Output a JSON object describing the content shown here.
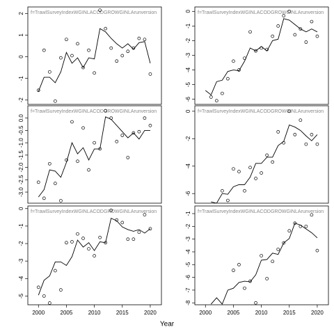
{
  "xlabel": "Year",
  "chart_data": [
    {
      "type": "scatter",
      "title": "f=TrawlSurveyIndexWGINLACODGROWGINLArunversion",
      "x": [
        2000,
        2001,
        2002,
        2003,
        2004,
        2005,
        2006,
        2007,
        2008,
        2009,
        2010,
        2011,
        2012,
        2013,
        2014,
        2015,
        2016,
        2017,
        2018,
        2019,
        2020
      ],
      "series": [
        {
          "style": "points",
          "color": "#000000",
          "values": [
            -1.55,
            0.3,
            -0.7,
            -2.05,
            -0.05,
            0.8,
            0.05,
            0.6,
            -0.5,
            0.3,
            -0.75,
            2.15,
            1.3,
            0.4,
            -0.2,
            0.05,
            0.25,
            0.4,
            0.85,
            0.8,
            -0.8
          ]
        },
        {
          "style": "line",
          "color": "#000000",
          "values": [
            -1.6,
            -0.95,
            -0.95,
            -1.2,
            -0.7,
            0.2,
            -0.3,
            -0.05,
            -0.5,
            -0.05,
            -0.1,
            1.3,
            1.15,
            0.85,
            0.6,
            0.4,
            0.6,
            0.35,
            0.65,
            0.7,
            -0.3
          ]
        }
      ],
      "xlim": [
        1998.1,
        2022
      ],
      "ylim": [
        -2.2,
        2.3
      ],
      "yticks": [
        -2,
        -1,
        0,
        1,
        2
      ]
    },
    {
      "type": "scatter",
      "title": "f=TrawlSurveyIndexWGINLACODGROWGINLArunversion",
      "x": [
        2000,
        2001,
        2002,
        2003,
        2004,
        2005,
        2006,
        2007,
        2008,
        2009,
        2010,
        2011,
        2012,
        2013,
        2014,
        2015,
        2016,
        2017,
        2018,
        2019,
        2020
      ],
      "series": [
        {
          "style": "points",
          "color": "#000000",
          "values": [
            null,
            -5.85,
            -6.1,
            -5.6,
            -4.6,
            -3.4,
            -4.0,
            -3.2,
            -1.4,
            -2.7,
            -2.5,
            -2.6,
            -1.7,
            -1.0,
            -0.3,
            0.0,
            -1.6,
            -1.2,
            -2.1,
            -0.7,
            -1.7
          ]
        },
        {
          "style": "line",
          "color": "#000000",
          "values": [
            -5.4,
            -5.7,
            -4.8,
            -4.7,
            -4.1,
            -4.0,
            -4.05,
            -3.4,
            -2.5,
            -2.7,
            -2.4,
            -2.7,
            -2.0,
            -1.9,
            -0.5,
            -0.6,
            -0.9,
            -1.2,
            -1.4,
            -1.2,
            -1.4
          ]
        }
      ],
      "xlim": [
        1998.1,
        2022
      ],
      "ylim": [
        -6.35,
        0.3
      ],
      "yticks": [
        0,
        -1,
        -2,
        -3,
        -4,
        -5,
        -6
      ]
    },
    {
      "type": "scatter",
      "title": "f=TrawlSurveyIndexWGINLACODGROWGINLArunversion",
      "x": [
        2000,
        2001,
        2002,
        2003,
        2004,
        2005,
        2006,
        2007,
        2008,
        2009,
        2010,
        2011,
        2012,
        2013,
        2014,
        2015,
        2016,
        2017,
        2018,
        2019,
        2020
      ],
      "series": [
        {
          "style": "points",
          "color": "#000000",
          "values": [
            -2.6,
            -3.25,
            -1.85,
            -2.65,
            -3.35,
            -1.7,
            -0.15,
            -1.75,
            -0.4,
            -2.1,
            -1.0,
            -1.25,
            0.3,
            0.0,
            -0.95,
            -0.7,
            -1.6,
            -0.6,
            -0.55,
            0.0,
            -0.3
          ]
        },
        {
          "style": "line",
          "color": "#000000",
          "values": [
            -3.2,
            -2.9,
            -2.1,
            -2.15,
            -2.4,
            -1.8,
            -1.0,
            -1.45,
            -1.2,
            -1.7,
            -1.25,
            -1.25,
            0.05,
            -0.05,
            -0.3,
            -0.55,
            -0.8,
            -0.6,
            -0.85,
            -0.5,
            -0.5
          ]
        }
      ],
      "xlim": [
        1998.1,
        2022
      ],
      "ylim": [
        -3.45,
        0.5
      ],
      "yticks": [
        {
          "value": 0,
          "label": "0.0"
        },
        -0.5,
        {
          "value": -1,
          "label": "-1.0"
        },
        -1.5,
        {
          "value": -2,
          "label": "-2.0"
        },
        -2.5,
        {
          "value": -3,
          "label": "-3.0"
        }
      ]
    },
    {
      "type": "scatter",
      "title": "f=TrawlSurveyIndexWGINLACODGROWGINLArunversion",
      "x": [
        2000,
        2001,
        2002,
        2003,
        2004,
        2005,
        2006,
        2007,
        2008,
        2009,
        2010,
        2011,
        2012,
        2013,
        2014,
        2015,
        2016,
        2017,
        2018,
        2019,
        2020
      ],
      "series": [
        {
          "style": "points",
          "color": "#000000",
          "values": [
            null,
            null,
            null,
            -5.8,
            -6.5,
            -4.2,
            -4.4,
            -5.8,
            -4.1,
            -4.9,
            -4.5,
            -3.2,
            -3.7,
            -1.5,
            -2.3,
            0.0,
            -1.7,
            -0.65,
            -2.4,
            -1.7,
            -2.4
          ]
        },
        {
          "style": "line",
          "color": "#000000",
          "values": [
            null,
            -6.6,
            -6.7,
            -6.0,
            -6.05,
            -5.5,
            -5.35,
            -5.35,
            -4.8,
            -3.8,
            -3.8,
            -3.35,
            -3.35,
            -2.5,
            -2.2,
            -1.0,
            -1.15,
            -1.4,
            -1.8,
            -2.15,
            -1.7
          ]
        }
      ],
      "xlim": [
        1998.1,
        2022
      ],
      "ylim": [
        -6.7,
        0.4
      ],
      "yticks": [
        0,
        -2,
        -4,
        -6
      ]
    },
    {
      "type": "scatter",
      "title": "f=TrawlSurveyIndexWGINLACODGROWGINLArunversion",
      "x": [
        2000,
        2001,
        2002,
        2003,
        2004,
        2005,
        2006,
        2007,
        2008,
        2009,
        2010,
        2011,
        2012,
        2013,
        2014,
        2015,
        2016,
        2017,
        2018,
        2019,
        2020
      ],
      "series": [
        {
          "style": "points",
          "color": "#000000",
          "values": [
            -4.5,
            -5.0,
            -5.4,
            -3.55,
            -4.65,
            -1.95,
            -1.9,
            -1.45,
            -1.7,
            -2.3,
            -2.7,
            -1.65,
            -1.95,
            -0.1,
            -0.65,
            -0.8,
            -1.75,
            -1.75,
            -1.35,
            -0.35,
            -1.15
          ]
        },
        {
          "style": "line",
          "color": "#000000",
          "values": [
            -4.95,
            -4.1,
            -3.85,
            -3.05,
            -3.05,
            -3.25,
            -2.75,
            -1.8,
            -2.2,
            -1.95,
            -2.4,
            -1.9,
            -1.95,
            -0.55,
            -0.7,
            -1.05,
            -1.2,
            -1.3,
            -1.2,
            -1.4,
            -1.15
          ]
        }
      ],
      "xlim": [
        1998.1,
        2022
      ],
      "ylim": [
        -5.5,
        0.15
      ],
      "yticks": [
        0,
        -1,
        -2,
        -3,
        -4,
        -5
      ],
      "xticks": [
        2000,
        2005,
        2010,
        2015,
        2020
      ]
    },
    {
      "type": "scatter",
      "title": "f=TrawlSurveyIndexWGINLACODGROWGINLArunversion",
      "x": [
        2000,
        2001,
        2002,
        2003,
        2004,
        2005,
        2006,
        2007,
        2008,
        2009,
        2010,
        2011,
        2012,
        2013,
        2014,
        2015,
        2016,
        2017,
        2018,
        2019,
        2020
      ],
      "series": [
        {
          "style": "points",
          "color": "#000000",
          "values": [
            null,
            null,
            null,
            null,
            null,
            -5.45,
            -5.0,
            -6.85,
            -6.3,
            -8.0,
            -4.3,
            -6.1,
            -4.75,
            -3.8,
            -3.3,
            -2.35,
            -1.75,
            -2.0,
            -2.0,
            -1.1,
            -3.9
          ]
        },
        {
          "style": "line",
          "color": "#000000",
          "values": [
            null,
            -8.1,
            -7.6,
            -8.1,
            -7.0,
            -6.85,
            -6.4,
            -6.3,
            -6.35,
            -5.8,
            -4.65,
            -4.6,
            -4.1,
            -4.2,
            -3.3,
            -2.95,
            -1.75,
            -1.9,
            -2.2,
            -2.5,
            -2.9
          ]
        }
      ],
      "xlim": [
        1998.1,
        2022
      ],
      "ylim": [
        -8.15,
        -0.4
      ],
      "yticks": [
        -1,
        -2,
        -3,
        -4,
        -5,
        -6,
        -7,
        -8
      ],
      "xticks": [
        2000,
        2005,
        2010,
        2015,
        2020
      ]
    }
  ]
}
